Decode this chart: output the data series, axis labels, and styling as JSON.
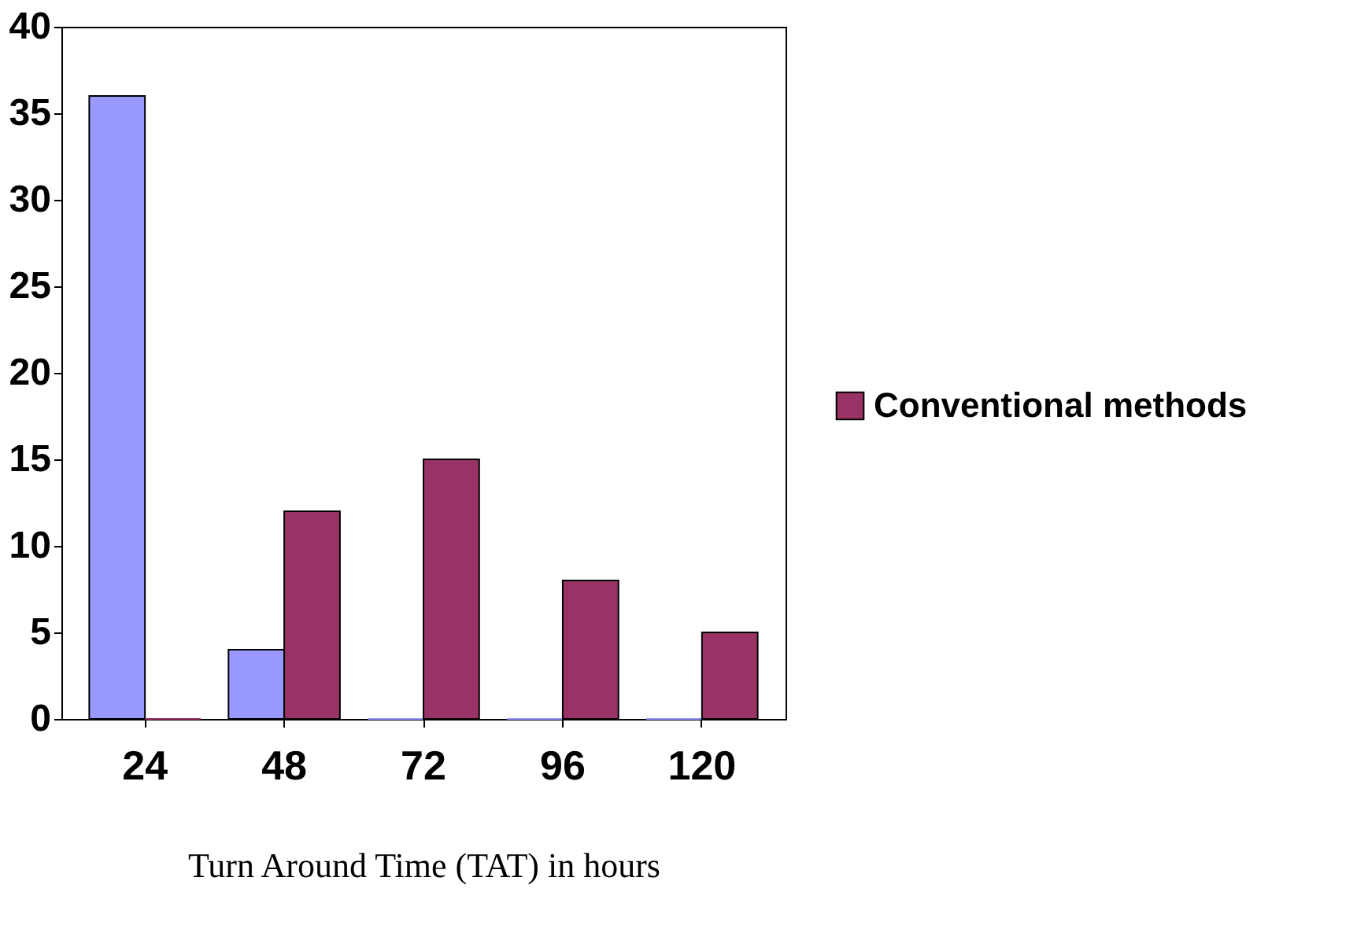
{
  "chart_data": {
    "type": "bar",
    "xlabel": "Turn Around Time (TAT) in hours",
    "categories": [
      "24",
      "48",
      "72",
      "96",
      "120"
    ],
    "series": [
      {
        "color": "#9999ff",
        "values": [
          36,
          4,
          0,
          0,
          0
        ]
      },
      {
        "name": "Conventional methods",
        "color": "#993366",
        "values": [
          0,
          12,
          15,
          8,
          5
        ]
      }
    ],
    "ylim": [
      0,
      40
    ],
    "yticks": [
      0,
      5,
      10,
      15,
      20,
      25,
      30,
      35,
      40
    ],
    "grid": false,
    "legend": "right"
  }
}
